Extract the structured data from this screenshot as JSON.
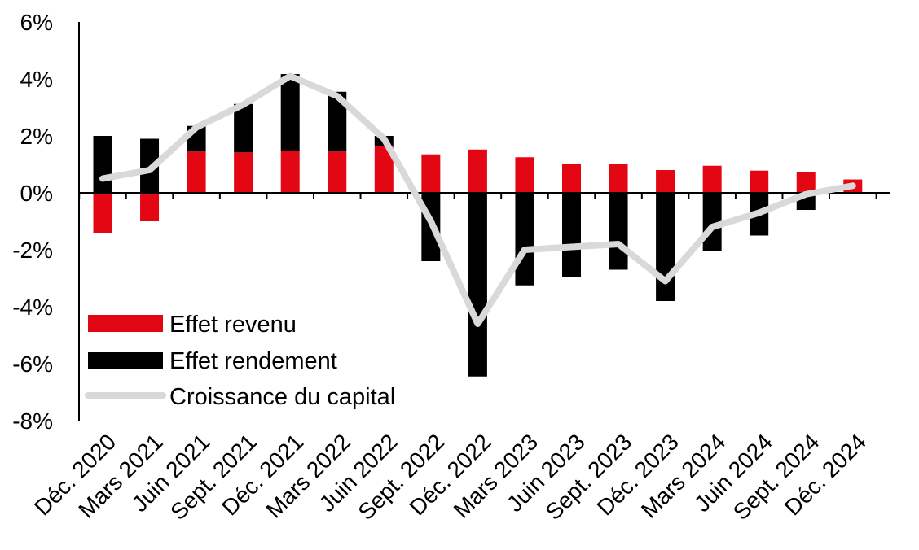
{
  "chart_data": {
    "type": "bar",
    "categories": [
      "Déc. 2020",
      "Mars 2021",
      "Juin 2021",
      "Sept. 2021",
      "Déc. 2021",
      "Mars 2022",
      "Juin 2022",
      "Sept. 2022",
      "Déc. 2022",
      "Mars 2023",
      "Juin 2023",
      "Sept. 2023",
      "Déc. 2023",
      "Mars 2024",
      "Juin 2024",
      "Sept. 2024",
      "Déc. 2024"
    ],
    "y_ticks": [
      "6%",
      "4%",
      "2%",
      "0%",
      "-2%",
      "-4%",
      "-6%",
      "-8%"
    ],
    "ylim": [
      -8,
      6
    ],
    "stacked": true,
    "series": [
      {
        "name": "Effet revenu",
        "type": "bar",
        "color": "#e30613",
        "values": [
          -1.4,
          -1.0,
          1.45,
          1.42,
          1.47,
          1.45,
          1.65,
          1.35,
          1.52,
          1.25,
          1.02,
          1.02,
          0.8,
          0.95,
          0.78,
          0.72,
          0.47
        ]
      },
      {
        "name": "Effet rendement",
        "type": "bar",
        "color": "#000000",
        "values": [
          2.0,
          1.9,
          0.9,
          1.7,
          2.7,
          2.1,
          0.35,
          -2.4,
          -6.45,
          -3.25,
          -2.95,
          -2.7,
          -3.8,
          -2.05,
          -1.5,
          -0.6,
          0.0
        ]
      },
      {
        "name": "Croissance du capital",
        "type": "line",
        "color": "#d9d9d9",
        "values": [
          0.5,
          0.8,
          2.3,
          3.1,
          4.1,
          3.4,
          1.9,
          -1.0,
          -4.6,
          -2.0,
          -1.9,
          -1.8,
          -3.1,
          -1.2,
          -0.7,
          -0.05,
          0.25
        ]
      }
    ],
    "legend": {
      "placement": "bottom-left"
    }
  }
}
